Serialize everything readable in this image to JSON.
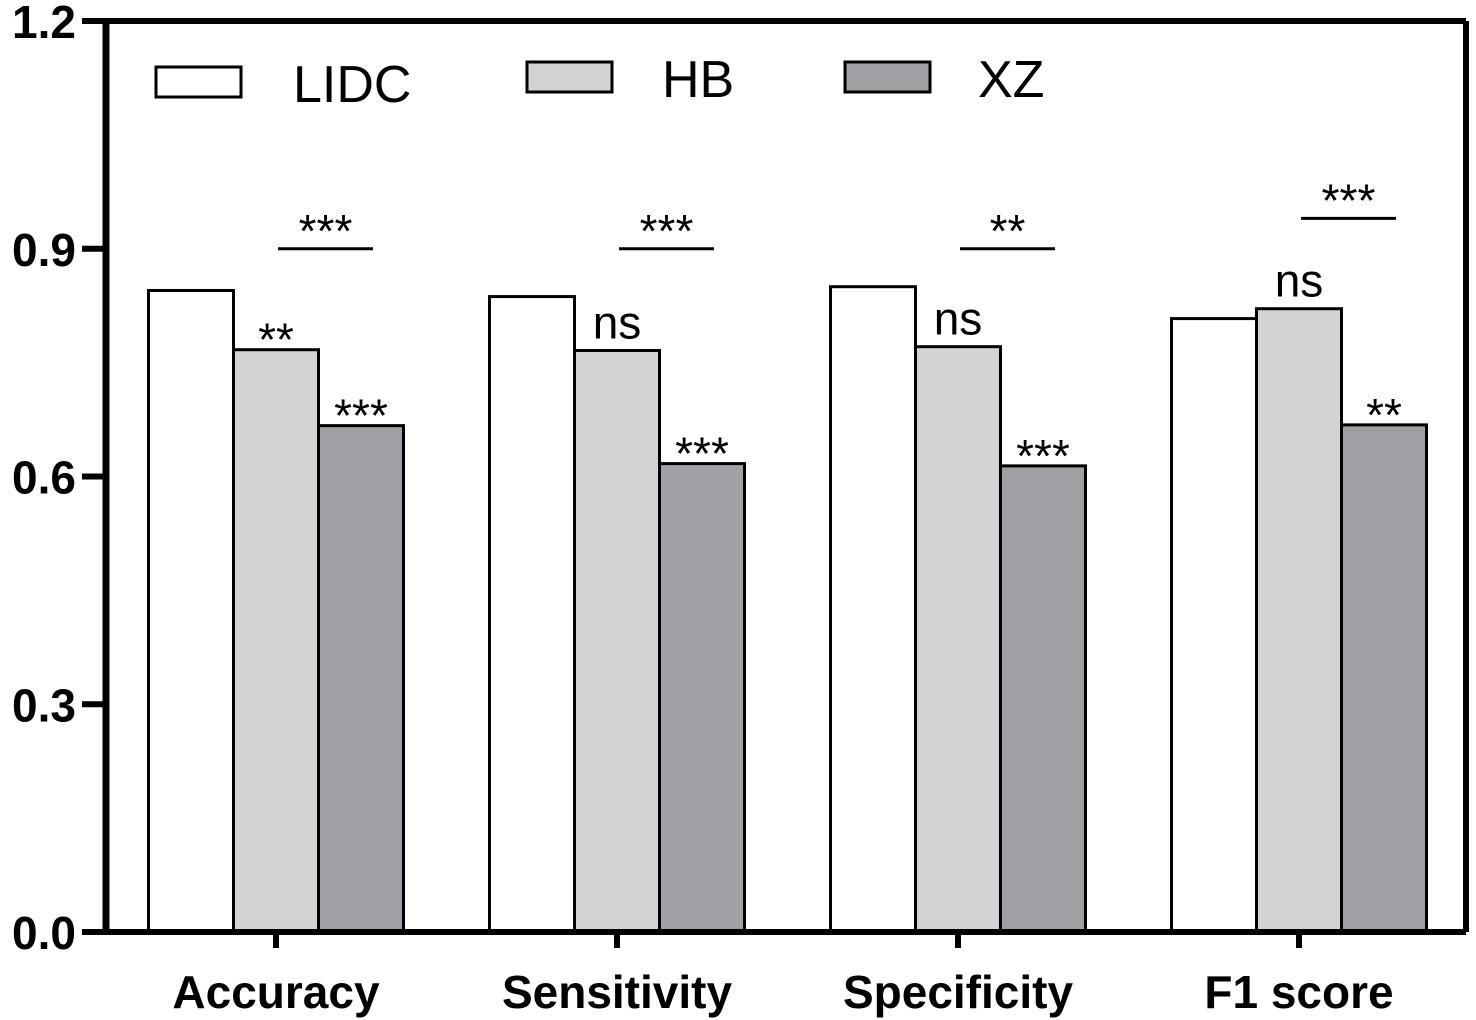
{
  "chart_data": {
    "type": "bar",
    "title": "",
    "xlabel": "",
    "ylabel": "",
    "ylim": [
      0,
      1.2
    ],
    "yticks": [
      "0.0",
      "0.3",
      "0.6",
      "0.9",
      "1.2"
    ],
    "grid": false,
    "legend_position": "top",
    "categories": [
      "Accuracy",
      "Sensitivity",
      "Specificity",
      "F1 score"
    ],
    "series": [
      {
        "name": "LIDC",
        "color": "#ffffff",
        "values": [
          0.845,
          0.837,
          0.85,
          0.808
        ]
      },
      {
        "name": "HB",
        "color": "#d3d3d3",
        "values": [
          0.767,
          0.766,
          0.771,
          0.821
        ]
      },
      {
        "name": "XZ",
        "color": "#a0a0a4",
        "values": [
          0.667,
          0.617,
          0.614,
          0.668
        ]
      }
    ],
    "annotations": {
      "HB": [
        "**",
        "ns",
        "ns",
        "ns"
      ],
      "XZ": [
        "***",
        "***",
        "***",
        "**"
      ],
      "HB_vs_XZ": [
        "***",
        "***",
        "**",
        "***"
      ]
    }
  }
}
